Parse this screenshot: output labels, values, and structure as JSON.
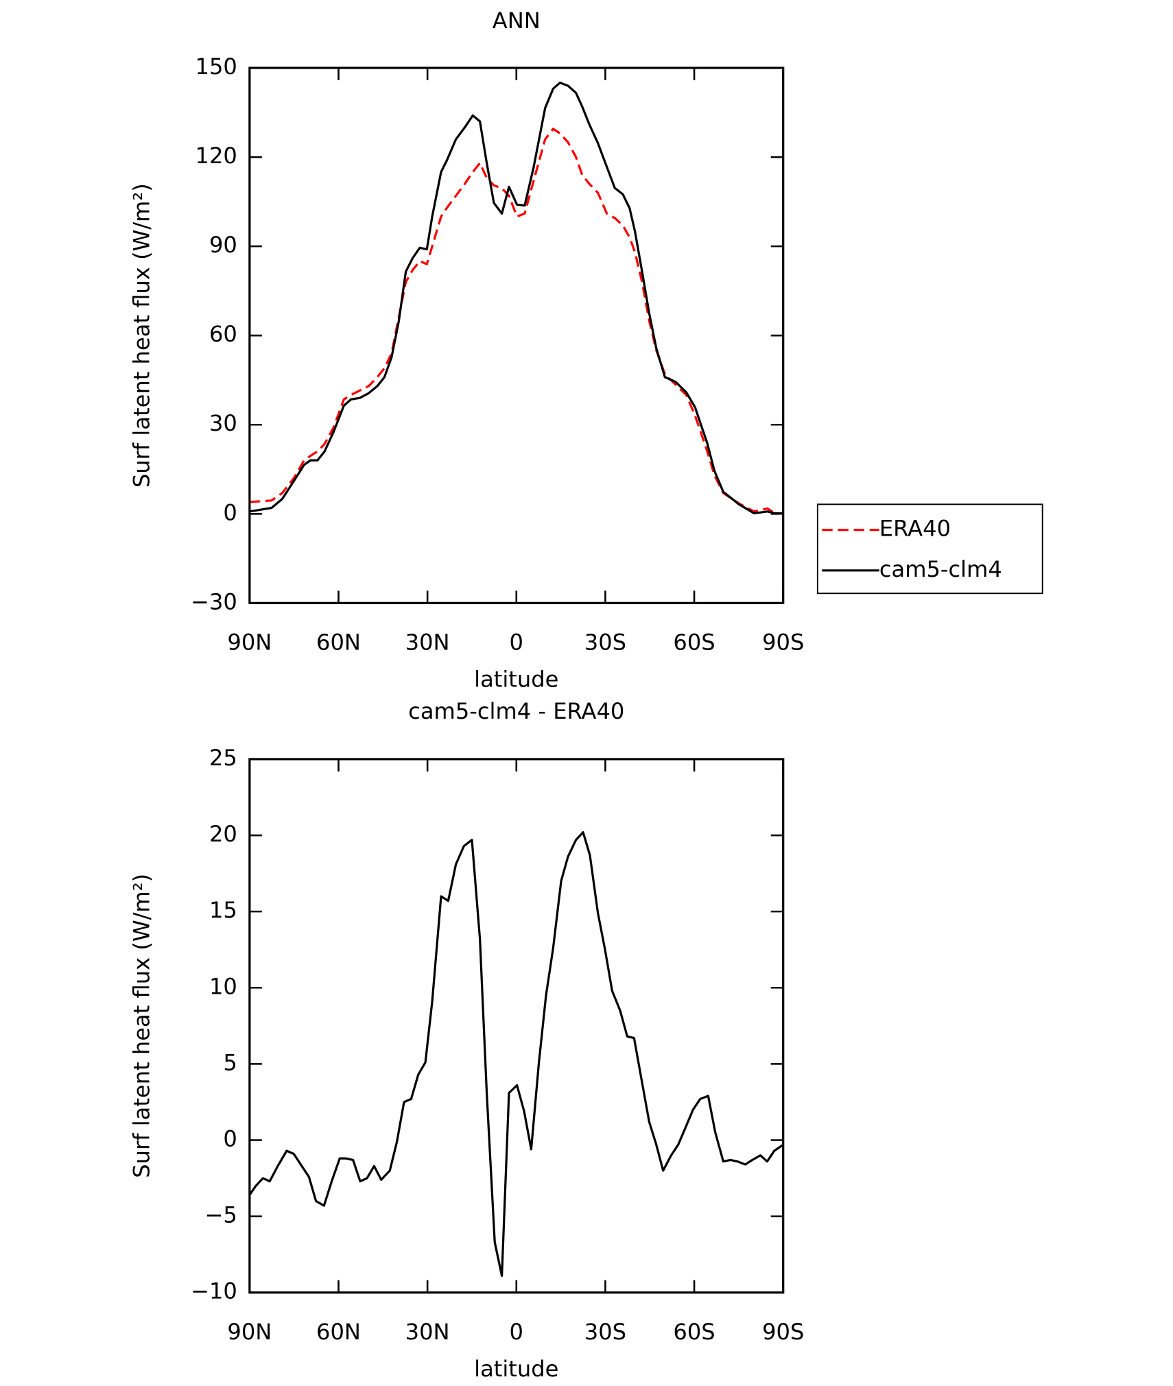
{
  "chart_data": [
    {
      "type": "line",
      "title": "ANN",
      "x_label": "latitude",
      "y_label": "Surf latent heat flux (W/m²)",
      "xlim": [
        90,
        -90
      ],
      "ylim": [
        -30,
        150
      ],
      "xticks": [
        {
          "value": 90,
          "label": "90N"
        },
        {
          "value": 60,
          "label": "60N"
        },
        {
          "value": 30,
          "label": "30N"
        },
        0,
        {
          "value": -30,
          "label": "30S"
        },
        {
          "value": -60,
          "label": "60S"
        },
        {
          "value": -90,
          "label": "90S"
        }
      ],
      "yticks": [
        {
          "value": -30,
          "label": "−30"
        },
        0,
        30,
        60,
        90,
        120,
        150
      ],
      "legend": "outside-right",
      "x": [
        90,
        82.6,
        79,
        75.1,
        71.6,
        69.5,
        67.1,
        64.7,
        61.7,
        58.2,
        55.8,
        52.8,
        49.8,
        46.9,
        44.5,
        42.1,
        39.7,
        37.3,
        35,
        32.6,
        30.2,
        28.4,
        25.4,
        23.4,
        20.4,
        17.4,
        14.7,
        12.3,
        10,
        7.6,
        4.9,
        2.5,
        -0.2,
        -2.8,
        -5.8,
        -9.7,
        -12.4,
        -14.7,
        -17.4,
        -20.1,
        -22.2,
        -24.6,
        -27.5,
        -30.5,
        -33.2,
        -35.9,
        -38.2,
        -40,
        -42.4,
        -44.8,
        -47.2,
        -50.1,
        -53.7,
        -57.3,
        -60.3,
        -64.4,
        -66.8,
        -69.8,
        -75.1,
        -80.2,
        -84.7,
        -87,
        -90
      ],
      "series": [
        {
          "name": "ERA40",
          "color": "#ff0000",
          "dash": true,
          "values": [
            4,
            4.5,
            7,
            12,
            18,
            19.5,
            21,
            23.5,
            29,
            38.5,
            40,
            41.5,
            43,
            46,
            49,
            54,
            66,
            78,
            82,
            85,
            84,
            90,
            100,
            103,
            107,
            111,
            115,
            118,
            113,
            110.5,
            109.5,
            107,
            100,
            101,
            112,
            126,
            129.5,
            128,
            125,
            120,
            114,
            111,
            108,
            101,
            99.5,
            97,
            93,
            88,
            78,
            65,
            55,
            47,
            43.5,
            40,
            33,
            21,
            13,
            7,
            3.5,
            0.8,
            1.8,
            0.4,
            0
          ]
        },
        {
          "name": "cam5-clm4",
          "color": "#000000",
          "dash": false,
          "values": [
            0.8,
            2,
            5,
            11,
            16.5,
            18,
            18,
            21,
            27.5,
            36.4,
            38.5,
            39,
            40.6,
            43,
            46,
            52.7,
            64.6,
            81.5,
            86,
            89.5,
            89,
            100,
            115,
            119,
            126,
            130,
            134,
            132,
            118,
            104.6,
            101,
            110,
            104,
            103.7,
            116.5,
            136.5,
            143,
            145,
            144,
            141.6,
            137,
            131,
            124.7,
            116.7,
            109.6,
            107.5,
            102.8,
            95,
            81.5,
            67.5,
            55.7,
            46,
            44.4,
            40.9,
            35.8,
            23.7,
            14.5,
            7.4,
            3.2,
            0.2,
            0.8,
            0.2,
            0.2
          ]
        }
      ]
    },
    {
      "type": "line",
      "title": "cam5-clm4 - ERA40",
      "x_label": "latitude",
      "y_label": "Surf latent heat flux (W/m²)",
      "xlim": [
        90,
        -90
      ],
      "ylim": [
        -10,
        25
      ],
      "xticks": [
        {
          "value": 90,
          "label": "90N"
        },
        {
          "value": 60,
          "label": "60N"
        },
        {
          "value": 30,
          "label": "30N"
        },
        0,
        {
          "value": -30,
          "label": "30S"
        },
        {
          "value": -60,
          "label": "60S"
        },
        {
          "value": -90,
          "label": "90S"
        }
      ],
      "yticks": [
        {
          "value": -10,
          "label": "−10"
        },
        {
          "value": -5,
          "label": "−5"
        },
        0,
        5,
        10,
        15,
        20,
        25
      ],
      "x": [
        90,
        87.9,
        85.5,
        83.2,
        80.5,
        77.5,
        75.1,
        72.4,
        70,
        67.6,
        64.9,
        62.3,
        59.6,
        57.5,
        55.1,
        52.7,
        50.4,
        48,
        45.6,
        42.7,
        40.3,
        37.9,
        35.5,
        33.1,
        30.7,
        28.4,
        25.4,
        23,
        20.4,
        17.7,
        15,
        12.3,
        10,
        7.3,
        4.9,
        2.5,
        -0.2,
        -2.6,
        -5,
        -7.6,
        -10,
        -12.4,
        -15.1,
        -17.4,
        -20.1,
        -22.5,
        -24.8,
        -27.5,
        -29.9,
        -32.3,
        -35,
        -37.4,
        -39.7,
        -42.1,
        -44.8,
        -47.2,
        -49.5,
        -52.2,
        -54.6,
        -57,
        -59.6,
        -62,
        -64.7,
        -67.1,
        -69.8,
        -72.2,
        -74.6,
        -77.2,
        -79.6,
        -82.3,
        -84.6,
        -87,
        -90
      ],
      "series": [
        {
          "color": "#000000",
          "dash": false,
          "values": [
            -3.6,
            -3,
            -2.5,
            -2.7,
            -1.7,
            -0.7,
            -0.9,
            -1.7,
            -2.4,
            -4,
            -4.3,
            -2.7,
            -1.2,
            -1.2,
            -1.3,
            -2.7,
            -2.5,
            -1.7,
            -2.6,
            -2,
            -0.1,
            2.5,
            2.7,
            4.3,
            5.1,
            9.1,
            16,
            15.7,
            18.1,
            19.3,
            19.7,
            13.2,
            3.1,
            -6.7,
            -8.9,
            3.1,
            3.6,
            1.9,
            -0.6,
            5.1,
            9.5,
            12.6,
            17,
            18.6,
            19.7,
            20.2,
            18.7,
            14.9,
            12.5,
            9.8,
            8.5,
            6.8,
            6.7,
            4.1,
            1.2,
            -0.3,
            -2,
            -1,
            -0.3,
            0.8,
            2,
            2.7,
            2.9,
            0.5,
            -1.4,
            -1.3,
            -1.4,
            -1.6,
            -1.3,
            -1,
            -1.4,
            -0.7,
            -0.3
          ]
        }
      ]
    }
  ]
}
